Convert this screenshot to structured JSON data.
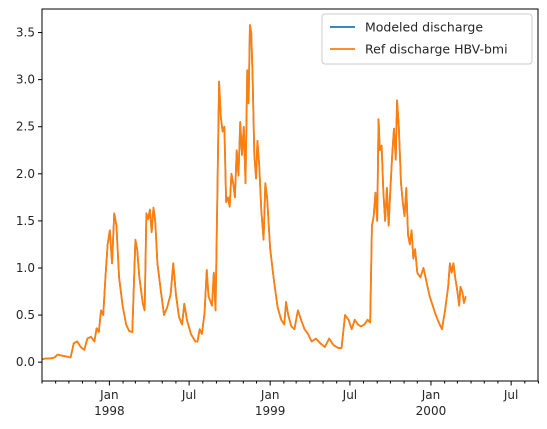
{
  "chart_data": {
    "type": "line",
    "title": "",
    "xlabel": "",
    "ylabel": "",
    "xlim": [
      "1997-08-01",
      "2000-08-31"
    ],
    "ylim": [
      -0.2,
      3.75
    ],
    "y_ticks": [
      0.0,
      0.5,
      1.0,
      1.5,
      2.0,
      2.5,
      3.0,
      3.5
    ],
    "y_tick_labels": [
      "0.0",
      "0.5",
      "1.0",
      "1.5",
      "2.0",
      "2.5",
      "3.0",
      "3.5"
    ],
    "x_major_ticks": [
      {
        "date": "1998-01-01",
        "label": "Jan",
        "sublabel": "1998"
      },
      {
        "date": "1998-07-01",
        "label": "Jul",
        "sublabel": ""
      },
      {
        "date": "1999-01-01",
        "label": "Jan",
        "sublabel": "1999"
      },
      {
        "date": "1999-07-01",
        "label": "Jul",
        "sublabel": ""
      },
      {
        "date": "2000-01-01",
        "label": "Jan",
        "sublabel": "2000"
      },
      {
        "date": "2000-07-01",
        "label": "Jul",
        "sublabel": ""
      }
    ],
    "x_minor_ticks": [
      "1997-08-01",
      "1997-09-01",
      "1997-10-01",
      "1997-11-01",
      "1997-12-01",
      "1998-02-01",
      "1998-03-01",
      "1998-04-01",
      "1998-05-01",
      "1998-06-01",
      "1998-08-01",
      "1998-09-01",
      "1998-10-01",
      "1998-11-01",
      "1998-12-01",
      "1999-02-01",
      "1999-03-01",
      "1999-04-01",
      "1999-05-01",
      "1999-06-01",
      "1999-08-01",
      "1999-09-01",
      "1999-10-01",
      "1999-11-01",
      "1999-12-01",
      "2000-02-01",
      "2000-03-01",
      "2000-04-01",
      "2000-05-01",
      "2000-06-01",
      "2000-08-01",
      "2000-09-01"
    ],
    "grid": false,
    "legend_position": "top-right",
    "series": [
      {
        "name": "Modeled discharge",
        "color": "#1f77b4",
        "ref": "points"
      },
      {
        "name": "Ref discharge HBV-bmi",
        "color": "#ff7f0e",
        "ref": "points"
      }
    ],
    "points": [
      [
        "1997-08-01",
        0.03
      ],
      [
        "1997-08-10",
        0.04
      ],
      [
        "1997-08-20",
        0.04
      ],
      [
        "1997-08-30",
        0.05
      ],
      [
        "1997-09-05",
        0.08
      ],
      [
        "1997-09-15",
        0.07
      ],
      [
        "1997-09-25",
        0.06
      ],
      [
        "1997-10-05",
        0.05
      ],
      [
        "1997-10-12",
        0.2
      ],
      [
        "1997-10-20",
        0.22
      ],
      [
        "1997-10-28",
        0.16
      ],
      [
        "1997-11-05",
        0.13
      ],
      [
        "1997-11-12",
        0.25
      ],
      [
        "1997-11-20",
        0.27
      ],
      [
        "1997-11-28",
        0.22
      ],
      [
        "1997-12-03",
        0.36
      ],
      [
        "1997-12-08",
        0.32
      ],
      [
        "1997-12-13",
        0.55
      ],
      [
        "1997-12-18",
        0.5
      ],
      [
        "1997-12-23",
        0.9
      ],
      [
        "1997-12-28",
        1.25
      ],
      [
        "1998-01-02",
        1.4
      ],
      [
        "1998-01-07",
        1.05
      ],
      [
        "1998-01-12",
        1.58
      ],
      [
        "1998-01-17",
        1.45
      ],
      [
        "1998-01-23",
        0.9
      ],
      [
        "1998-01-31",
        0.6
      ],
      [
        "1998-02-08",
        0.4
      ],
      [
        "1998-02-15",
        0.33
      ],
      [
        "1998-02-22",
        0.32
      ],
      [
        "1998-03-01",
        1.3
      ],
      [
        "1998-03-05",
        1.2
      ],
      [
        "1998-03-10",
        0.9
      ],
      [
        "1998-03-18",
        0.62
      ],
      [
        "1998-03-22",
        0.55
      ],
      [
        "1998-03-26",
        1.58
      ],
      [
        "1998-03-30",
        1.52
      ],
      [
        "1998-04-03",
        1.62
      ],
      [
        "1998-04-07",
        1.38
      ],
      [
        "1998-04-11",
        1.64
      ],
      [
        "1998-04-15",
        1.5
      ],
      [
        "1998-04-20",
        1.05
      ],
      [
        "1998-04-28",
        0.75
      ],
      [
        "1998-05-05",
        0.5
      ],
      [
        "1998-05-12",
        0.58
      ],
      [
        "1998-05-20",
        0.72
      ],
      [
        "1998-05-26",
        1.05
      ],
      [
        "1998-06-01",
        0.72
      ],
      [
        "1998-06-08",
        0.48
      ],
      [
        "1998-06-15",
        0.4
      ],
      [
        "1998-06-20",
        0.62
      ],
      [
        "1998-06-26",
        0.45
      ],
      [
        "1998-07-05",
        0.3
      ],
      [
        "1998-07-15",
        0.22
      ],
      [
        "1998-07-20",
        0.22
      ],
      [
        "1998-07-25",
        0.35
      ],
      [
        "1998-07-30",
        0.3
      ],
      [
        "1998-08-05",
        0.52
      ],
      [
        "1998-08-10",
        0.98
      ],
      [
        "1998-08-14",
        0.7
      ],
      [
        "1998-08-18",
        0.65
      ],
      [
        "1998-08-22",
        0.6
      ],
      [
        "1998-08-26",
        0.95
      ],
      [
        "1998-08-30",
        0.55
      ],
      [
        "1998-09-03",
        1.75
      ],
      [
        "1998-09-07",
        2.98
      ],
      [
        "1998-09-11",
        2.6
      ],
      [
        "1998-09-15",
        2.45
      ],
      [
        "1998-09-19",
        2.5
      ],
      [
        "1998-09-23",
        1.7
      ],
      [
        "1998-09-27",
        1.75
      ],
      [
        "1998-10-01",
        1.65
      ],
      [
        "1998-10-05",
        2.0
      ],
      [
        "1998-10-09",
        1.9
      ],
      [
        "1998-10-13",
        1.75
      ],
      [
        "1998-10-17",
        2.25
      ],
      [
        "1998-10-21",
        1.98
      ],
      [
        "1998-10-25",
        2.55
      ],
      [
        "1998-10-29",
        2.2
      ],
      [
        "1998-11-02",
        2.5
      ],
      [
        "1998-11-06",
        1.9
      ],
      [
        "1998-11-10",
        3.1
      ],
      [
        "1998-11-13",
        2.75
      ],
      [
        "1998-11-16",
        3.58
      ],
      [
        "1998-11-19",
        3.5
      ],
      [
        "1998-11-22",
        3.05
      ],
      [
        "1998-11-26",
        2.2
      ],
      [
        "1998-11-30",
        1.95
      ],
      [
        "1998-12-03",
        2.35
      ],
      [
        "1998-12-07",
        2.1
      ],
      [
        "1998-12-12",
        1.6
      ],
      [
        "1998-12-17",
        1.3
      ],
      [
        "1998-12-21",
        1.9
      ],
      [
        "1998-12-25",
        1.75
      ],
      [
        "1999-01-01",
        1.2
      ],
      [
        "1999-01-10",
        0.85
      ],
      [
        "1999-01-18",
        0.58
      ],
      [
        "1999-01-26",
        0.45
      ],
      [
        "1999-02-02",
        0.4
      ],
      [
        "1999-02-06",
        0.64
      ],
      [
        "1999-02-11",
        0.5
      ],
      [
        "1999-02-18",
        0.38
      ],
      [
        "1999-02-25",
        0.35
      ],
      [
        "1999-03-05",
        0.55
      ],
      [
        "1999-03-12",
        0.45
      ],
      [
        "1999-03-20",
        0.35
      ],
      [
        "1999-03-28",
        0.3
      ],
      [
        "1999-04-05",
        0.22
      ],
      [
        "1999-04-15",
        0.25
      ],
      [
        "1999-04-25",
        0.2
      ],
      [
        "1999-05-05",
        0.16
      ],
      [
        "1999-05-15",
        0.25
      ],
      [
        "1999-05-25",
        0.18
      ],
      [
        "1999-06-05",
        0.15
      ],
      [
        "1999-06-12",
        0.15
      ],
      [
        "1999-06-20",
        0.5
      ],
      [
        "1999-06-28",
        0.45
      ],
      [
        "1999-07-05",
        0.35
      ],
      [
        "1999-07-12",
        0.45
      ],
      [
        "1999-07-19",
        0.4
      ],
      [
        "1999-07-26",
        0.38
      ],
      [
        "1999-08-03",
        0.4
      ],
      [
        "1999-08-10",
        0.45
      ],
      [
        "1999-08-16",
        0.42
      ],
      [
        "1999-08-20",
        1.45
      ],
      [
        "1999-08-24",
        1.55
      ],
      [
        "1999-08-28",
        1.8
      ],
      [
        "1999-09-01",
        1.5
      ],
      [
        "1999-09-04",
        2.58
      ],
      [
        "1999-09-07",
        2.25
      ],
      [
        "1999-09-11",
        2.3
      ],
      [
        "1999-09-15",
        1.8
      ],
      [
        "1999-09-19",
        1.5
      ],
      [
        "1999-09-23",
        1.85
      ],
      [
        "1999-09-27",
        1.45
      ],
      [
        "1999-10-01",
        1.85
      ],
      [
        "1999-10-05",
        2.2
      ],
      [
        "1999-10-09",
        2.48
      ],
      [
        "1999-10-13",
        2.15
      ],
      [
        "1999-10-16",
        2.78
      ],
      [
        "1999-10-20",
        2.5
      ],
      [
        "1999-10-25",
        1.9
      ],
      [
        "1999-10-29",
        1.7
      ],
      [
        "1999-11-02",
        1.55
      ],
      [
        "1999-11-06",
        1.85
      ],
      [
        "1999-11-10",
        1.35
      ],
      [
        "1999-11-14",
        1.25
      ],
      [
        "1999-11-18",
        1.4
      ],
      [
        "1999-11-22",
        1.1
      ],
      [
        "1999-11-26",
        1.2
      ],
      [
        "1999-12-01",
        0.95
      ],
      [
        "1999-12-08",
        0.9
      ],
      [
        "1999-12-15",
        1.0
      ],
      [
        "1999-12-22",
        0.85
      ],
      [
        "1999-12-29",
        0.7
      ],
      [
        "2000-01-05",
        0.6
      ],
      [
        "2000-01-12",
        0.5
      ],
      [
        "2000-01-19",
        0.42
      ],
      [
        "2000-01-26",
        0.35
      ],
      [
        "2000-02-02",
        0.55
      ],
      [
        "2000-02-09",
        0.8
      ],
      [
        "2000-02-13",
        1.05
      ],
      [
        "2000-02-17",
        0.95
      ],
      [
        "2000-02-21",
        1.05
      ],
      [
        "2000-02-25",
        0.9
      ],
      [
        "2000-03-01",
        0.75
      ],
      [
        "2000-03-05",
        0.6
      ],
      [
        "2000-03-08",
        0.8
      ],
      [
        "2000-03-12",
        0.75
      ],
      [
        "2000-03-16",
        0.63
      ],
      [
        "2000-03-20",
        0.7
      ]
    ]
  }
}
